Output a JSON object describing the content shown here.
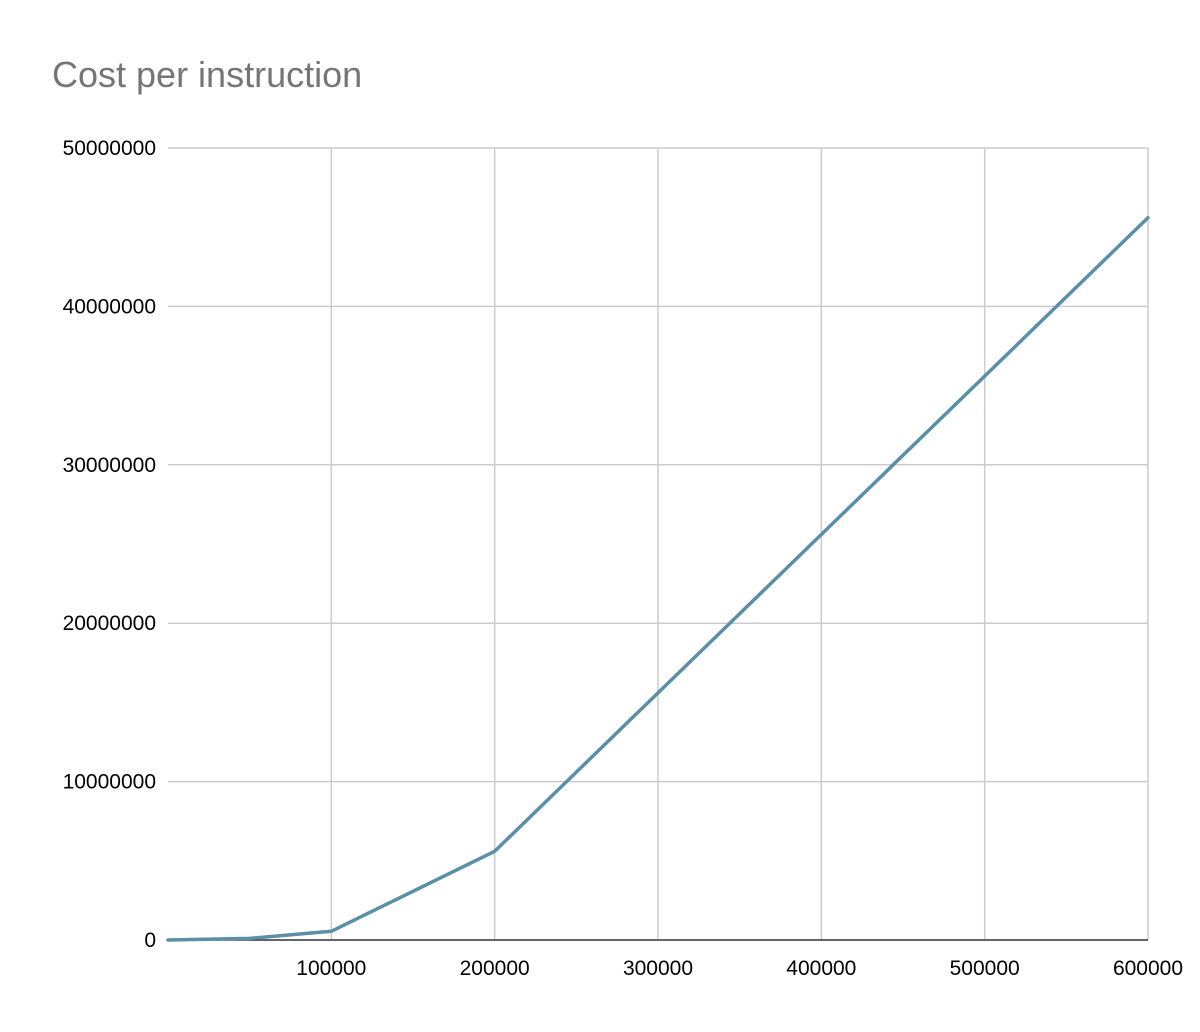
{
  "chart_data": {
    "type": "line",
    "title": "Cost per instruction",
    "xlabel": "",
    "ylabel": "",
    "xlim": [
      0,
      600000
    ],
    "ylim": [
      0,
      50000000
    ],
    "x_ticks": [
      100000,
      200000,
      300000,
      400000,
      500000,
      600000
    ],
    "y_ticks": [
      0,
      10000000,
      20000000,
      30000000,
      40000000,
      50000000
    ],
    "x_tick_labels": [
      "100000",
      "200000",
      "300000",
      "400000",
      "500000",
      "600000"
    ],
    "y_tick_labels": [
      "0",
      "10000000",
      "20000000",
      "30000000",
      "40000000",
      "50000000"
    ],
    "grid": true,
    "legend": "none",
    "series": [
      {
        "color": "#5b8fa8",
        "points": [
          {
            "x": 0,
            "y": 0
          },
          {
            "x": 50000,
            "y": 100000
          },
          {
            "x": 100000,
            "y": 550000
          },
          {
            "x": 200000,
            "y": 5600000
          },
          {
            "x": 300000,
            "y": 15600000
          },
          {
            "x": 400000,
            "y": 25600000
          },
          {
            "x": 500000,
            "y": 35600000
          },
          {
            "x": 600000,
            "y": 45600000
          }
        ]
      }
    ]
  }
}
